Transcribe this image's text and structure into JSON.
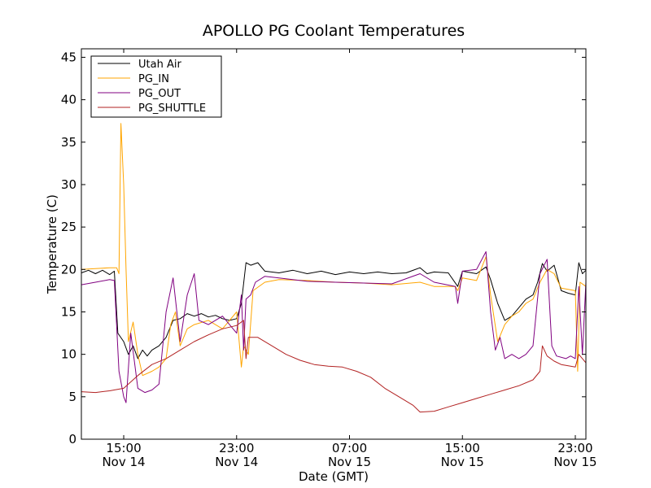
{
  "chart_data": {
    "type": "line",
    "title": "APOLLO PG Coolant Temperatures",
    "xlabel": "Date (GMT)",
    "ylabel": "Temperature (C)",
    "xlim": [
      "2013-11-14 12:00",
      "2013-11-15 23:45"
    ],
    "ylim": [
      0,
      46
    ],
    "yticks": [
      0,
      5,
      10,
      15,
      20,
      25,
      30,
      35,
      40,
      45
    ],
    "xticks": [
      {
        "t": "2013-11-14 15:00",
        "label1": "15:00",
        "label2": "Nov 14"
      },
      {
        "t": "2013-11-14 23:00",
        "label1": "23:00",
        "label2": "Nov 14"
      },
      {
        "t": "2013-11-15 07:00",
        "label1": "07:00",
        "label2": "Nov 15"
      },
      {
        "t": "2013-11-15 15:00",
        "label1": "15:00",
        "label2": "Nov 15"
      },
      {
        "t": "2013-11-15 23:00",
        "label1": "23:00",
        "label2": "Nov 15"
      }
    ],
    "grid": false,
    "legend_position": "top-left",
    "series": [
      {
        "name": "Utah Air",
        "color": "#000000",
        "points": [
          [
            "2013-11-14 12:00",
            19.6
          ],
          [
            "2013-11-14 12:30",
            19.9
          ],
          [
            "2013-11-14 13:00",
            19.5
          ],
          [
            "2013-11-14 13:30",
            19.9
          ],
          [
            "2013-11-14 14:00",
            19.4
          ],
          [
            "2013-11-14 14:20",
            19.8
          ],
          [
            "2013-11-14 14:35",
            12.5
          ],
          [
            "2013-11-14 15:00",
            11.5
          ],
          [
            "2013-11-14 15:20",
            10.0
          ],
          [
            "2013-11-14 15:40",
            11.0
          ],
          [
            "2013-11-14 16:00",
            9.5
          ],
          [
            "2013-11-14 16:20",
            10.5
          ],
          [
            "2013-11-14 16:40",
            9.8
          ],
          [
            "2013-11-14 17:00",
            10.5
          ],
          [
            "2013-11-14 17:30",
            11.0
          ],
          [
            "2013-11-14 18:00",
            12.0
          ],
          [
            "2013-11-14 18:30",
            14.0
          ],
          [
            "2013-11-14 19:00",
            14.2
          ],
          [
            "2013-11-14 19:30",
            14.8
          ],
          [
            "2013-11-14 20:00",
            14.5
          ],
          [
            "2013-11-14 20:30",
            14.8
          ],
          [
            "2013-11-14 21:00",
            14.4
          ],
          [
            "2013-11-14 21:30",
            14.6
          ],
          [
            "2013-11-14 22:00",
            14.2
          ],
          [
            "2013-11-14 22:30",
            14.0
          ],
          [
            "2013-11-14 23:00",
            14.2
          ],
          [
            "2013-11-14 23:20",
            16.0
          ],
          [
            "2013-11-14 23:40",
            20.8
          ],
          [
            "2013-11-15 00:00",
            20.5
          ],
          [
            "2013-11-15 00:30",
            20.8
          ],
          [
            "2013-11-15 01:00",
            19.8
          ],
          [
            "2013-11-15 02:00",
            19.6
          ],
          [
            "2013-11-15 03:00",
            19.9
          ],
          [
            "2013-11-15 04:00",
            19.5
          ],
          [
            "2013-11-15 05:00",
            19.8
          ],
          [
            "2013-11-15 06:00",
            19.4
          ],
          [
            "2013-11-15 07:00",
            19.7
          ],
          [
            "2013-11-15 08:00",
            19.5
          ],
          [
            "2013-11-15 09:00",
            19.7
          ],
          [
            "2013-11-15 10:00",
            19.5
          ],
          [
            "2013-11-15 11:00",
            19.6
          ],
          [
            "2013-11-15 12:00",
            20.2
          ],
          [
            "2013-11-15 12:30",
            19.5
          ],
          [
            "2013-11-15 13:00",
            19.7
          ],
          [
            "2013-11-15 14:00",
            19.6
          ],
          [
            "2013-11-15 14:40",
            18.0
          ],
          [
            "2013-11-15 15:00",
            19.8
          ],
          [
            "2013-11-15 16:00",
            19.5
          ],
          [
            "2013-11-15 16:40",
            20.3
          ],
          [
            "2013-11-15 17:00",
            18.8
          ],
          [
            "2013-11-15 17:30",
            16.0
          ],
          [
            "2013-11-15 18:00",
            14.0
          ],
          [
            "2013-11-15 18:30",
            14.5
          ],
          [
            "2013-11-15 19:00",
            15.5
          ],
          [
            "2013-11-15 19:30",
            16.5
          ],
          [
            "2013-11-15 20:00",
            17.0
          ],
          [
            "2013-11-15 20:20",
            18.5
          ],
          [
            "2013-11-15 20:40",
            20.7
          ],
          [
            "2013-11-15 21:00",
            19.8
          ],
          [
            "2013-11-15 21:30",
            20.5
          ],
          [
            "2013-11-15 22:00",
            17.5
          ],
          [
            "2013-11-15 22:30",
            17.2
          ],
          [
            "2013-11-15 23:00",
            17.0
          ],
          [
            "2013-11-15 23:15",
            20.8
          ],
          [
            "2013-11-15 23:30",
            19.5
          ],
          [
            "2013-11-15 23:45",
            19.9
          ]
        ]
      },
      {
        "name": "PG_IN",
        "color": "#ffa500",
        "points": [
          [
            "2013-11-14 12:00",
            20.0
          ],
          [
            "2013-11-14 13:00",
            20.1
          ],
          [
            "2013-11-14 14:00",
            20.2
          ],
          [
            "2013-11-14 14:30",
            20.2
          ],
          [
            "2013-11-14 14:40",
            19.5
          ],
          [
            "2013-11-14 14:48",
            37.2
          ],
          [
            "2013-11-14 15:00",
            30.0
          ],
          [
            "2013-11-14 15:10",
            20.0
          ],
          [
            "2013-11-14 15:20",
            11.5
          ],
          [
            "2013-11-14 15:40",
            13.8
          ],
          [
            "2013-11-14 16:00",
            10.0
          ],
          [
            "2013-11-14 16:20",
            7.5
          ],
          [
            "2013-11-14 17:00",
            8.0
          ],
          [
            "2013-11-14 17:30",
            8.5
          ],
          [
            "2013-11-14 18:00",
            9.5
          ],
          [
            "2013-11-14 18:20",
            13.5
          ],
          [
            "2013-11-14 18:40",
            15.0
          ],
          [
            "2013-11-14 19:00",
            11.0
          ],
          [
            "2013-11-14 19:30",
            13.0
          ],
          [
            "2013-11-14 20:00",
            13.5
          ],
          [
            "2013-11-14 21:00",
            14.0
          ],
          [
            "2013-11-14 22:00",
            13.0
          ],
          [
            "2013-11-14 22:30",
            14.0
          ],
          [
            "2013-11-14 23:00",
            15.0
          ],
          [
            "2013-11-14 23:20",
            8.5
          ],
          [
            "2013-11-14 23:30",
            11.0
          ],
          [
            "2013-11-14 23:50",
            10.0
          ],
          [
            "2013-11-15 00:10",
            17.5
          ],
          [
            "2013-11-15 01:00",
            18.5
          ],
          [
            "2013-11-15 02:00",
            18.8
          ],
          [
            "2013-11-15 04:00",
            18.7
          ],
          [
            "2013-11-15 06:00",
            18.5
          ],
          [
            "2013-11-15 08:00",
            18.4
          ],
          [
            "2013-11-15 10:00",
            18.2
          ],
          [
            "2013-11-15 12:00",
            18.5
          ],
          [
            "2013-11-15 13:00",
            18.0
          ],
          [
            "2013-11-15 14:30",
            18.0
          ],
          [
            "2013-11-15 14:40",
            17.5
          ],
          [
            "2013-11-15 15:00",
            19.0
          ],
          [
            "2013-11-15 16:00",
            18.7
          ],
          [
            "2013-11-15 16:40",
            21.5
          ],
          [
            "2013-11-15 17:00",
            17.0
          ],
          [
            "2013-11-15 17:30",
            11.5
          ],
          [
            "2013-11-15 18:00",
            13.5
          ],
          [
            "2013-11-15 18:30",
            14.5
          ],
          [
            "2013-11-15 19:00",
            15.0
          ],
          [
            "2013-11-15 19:30",
            16.0
          ],
          [
            "2013-11-15 20:00",
            16.5
          ],
          [
            "2013-11-15 20:30",
            18.5
          ],
          [
            "2013-11-15 21:00",
            20.0
          ],
          [
            "2013-11-15 21:30",
            19.5
          ],
          [
            "2013-11-15 22:00",
            17.8
          ],
          [
            "2013-11-15 23:00",
            17.5
          ],
          [
            "2013-11-15 23:10",
            8.0
          ],
          [
            "2013-11-15 23:20",
            18.5
          ],
          [
            "2013-11-15 23:45",
            18.0
          ]
        ]
      },
      {
        "name": "PG_OUT",
        "color": "#800080",
        "points": [
          [
            "2013-11-14 12:00",
            18.2
          ],
          [
            "2013-11-14 13:00",
            18.5
          ],
          [
            "2013-11-14 14:00",
            18.8
          ],
          [
            "2013-11-14 14:20",
            18.7
          ],
          [
            "2013-11-14 14:40",
            8.0
          ],
          [
            "2013-11-14 15:00",
            5.0
          ],
          [
            "2013-11-14 15:10",
            4.3
          ],
          [
            "2013-11-14 15:30",
            12.5
          ],
          [
            "2013-11-14 16:00",
            6.0
          ],
          [
            "2013-11-14 16:30",
            5.5
          ],
          [
            "2013-11-14 17:00",
            5.8
          ],
          [
            "2013-11-14 17:30",
            6.5
          ],
          [
            "2013-11-14 18:00",
            15.0
          ],
          [
            "2013-11-14 18:30",
            19.0
          ],
          [
            "2013-11-14 19:00",
            11.5
          ],
          [
            "2013-11-14 19:30",
            17.0
          ],
          [
            "2013-11-14 20:00",
            19.5
          ],
          [
            "2013-11-14 20:20",
            14.0
          ],
          [
            "2013-11-14 21:00",
            13.5
          ],
          [
            "2013-11-14 22:00",
            14.5
          ],
          [
            "2013-11-14 23:00",
            12.5
          ],
          [
            "2013-11-14 23:20",
            17.0
          ],
          [
            "2013-11-14 23:30",
            10.5
          ],
          [
            "2013-11-14 23:40",
            16.5
          ],
          [
            "2013-11-15 00:00",
            17.0
          ],
          [
            "2013-11-15 00:20",
            18.5
          ],
          [
            "2013-11-15 01:00",
            19.2
          ],
          [
            "2013-11-15 02:00",
            19.0
          ],
          [
            "2013-11-15 04:00",
            18.6
          ],
          [
            "2013-11-15 06:00",
            18.5
          ],
          [
            "2013-11-15 08:00",
            18.4
          ],
          [
            "2013-11-15 10:00",
            18.3
          ],
          [
            "2013-11-15 12:00",
            19.5
          ],
          [
            "2013-11-15 13:00",
            18.5
          ],
          [
            "2013-11-15 14:30",
            18.0
          ],
          [
            "2013-11-15 14:40",
            16.0
          ],
          [
            "2013-11-15 15:00",
            19.8
          ],
          [
            "2013-11-15 16:00",
            20.0
          ],
          [
            "2013-11-15 16:40",
            22.1
          ],
          [
            "2013-11-15 17:00",
            15.0
          ],
          [
            "2013-11-15 17:20",
            10.5
          ],
          [
            "2013-11-15 17:40",
            12.0
          ],
          [
            "2013-11-15 18:00",
            9.5
          ],
          [
            "2013-11-15 18:30",
            10.0
          ],
          [
            "2013-11-15 19:00",
            9.5
          ],
          [
            "2013-11-15 19:30",
            10.0
          ],
          [
            "2013-11-15 20:00",
            11.0
          ],
          [
            "2013-11-15 20:30",
            19.5
          ],
          [
            "2013-11-15 21:00",
            21.2
          ],
          [
            "2013-11-15 21:20",
            11.0
          ],
          [
            "2013-11-15 21:40",
            9.8
          ],
          [
            "2013-11-15 22:20",
            9.5
          ],
          [
            "2013-11-15 22:40",
            9.8
          ],
          [
            "2013-11-15 23:00",
            9.5
          ],
          [
            "2013-11-15 23:15",
            18.0
          ],
          [
            "2013-11-15 23:30",
            10.0
          ],
          [
            "2013-11-15 23:45",
            18.5
          ]
        ]
      },
      {
        "name": "PG_SHUTTLE",
        "color": "#b22222",
        "points": [
          [
            "2013-11-14 12:00",
            5.6
          ],
          [
            "2013-11-14 13:00",
            5.5
          ],
          [
            "2013-11-14 14:00",
            5.7
          ],
          [
            "2013-11-14 15:00",
            6.0
          ],
          [
            "2013-11-14 16:00",
            7.5
          ],
          [
            "2013-11-14 17:00",
            8.8
          ],
          [
            "2013-11-14 18:00",
            9.5
          ],
          [
            "2013-11-14 19:00",
            10.5
          ],
          [
            "2013-11-14 20:00",
            11.5
          ],
          [
            "2013-11-14 21:00",
            12.3
          ],
          [
            "2013-11-14 22:00",
            13.0
          ],
          [
            "2013-11-14 23:00",
            13.4
          ],
          [
            "2013-11-14 23:30",
            14.0
          ],
          [
            "2013-11-14 23:40",
            9.5
          ],
          [
            "2013-11-14 23:50",
            12.0
          ],
          [
            "2013-11-15 00:30",
            12.0
          ],
          [
            "2013-11-15 01:30",
            11.0
          ],
          [
            "2013-11-15 02:30",
            10.0
          ],
          [
            "2013-11-15 03:30",
            9.3
          ],
          [
            "2013-11-15 04:30",
            8.8
          ],
          [
            "2013-11-15 05:30",
            8.6
          ],
          [
            "2013-11-15 06:30",
            8.5
          ],
          [
            "2013-11-15 07:30",
            8.0
          ],
          [
            "2013-11-15 08:30",
            7.3
          ],
          [
            "2013-11-15 09:30",
            6.0
          ],
          [
            "2013-11-15 10:30",
            5.0
          ],
          [
            "2013-11-15 11:30",
            4.0
          ],
          [
            "2013-11-15 12:00",
            3.2
          ],
          [
            "2013-11-15 13:00",
            3.3
          ],
          [
            "2013-11-15 14:00",
            3.8
          ],
          [
            "2013-11-15 15:00",
            4.3
          ],
          [
            "2013-11-15 16:00",
            4.8
          ],
          [
            "2013-11-15 17:00",
            5.3
          ],
          [
            "2013-11-15 18:00",
            5.8
          ],
          [
            "2013-11-15 19:00",
            6.3
          ],
          [
            "2013-11-15 20:00",
            7.0
          ],
          [
            "2013-11-15 20:30",
            8.0
          ],
          [
            "2013-11-15 20:40",
            11.0
          ],
          [
            "2013-11-15 21:00",
            9.8
          ],
          [
            "2013-11-15 21:30",
            9.2
          ],
          [
            "2013-11-15 22:00",
            8.8
          ],
          [
            "2013-11-15 23:00",
            8.5
          ],
          [
            "2013-11-15 23:15",
            10.0
          ],
          [
            "2013-11-15 23:45",
            9.0
          ]
        ]
      }
    ]
  }
}
